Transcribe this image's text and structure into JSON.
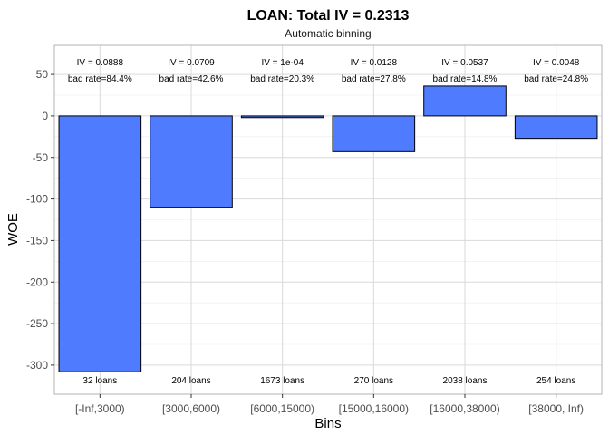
{
  "chart_data": {
    "type": "bar",
    "title": "LOAN: Total IV = 0.2313",
    "subtitle": "Automatic binning",
    "xlabel": "Bins",
    "ylabel": "WOE",
    "categories": [
      "[-Inf,3000)",
      "[3000,6000)",
      "[6000,15000)",
      "[15000,16000)",
      "[16000,38000)",
      "[38000, Inf)"
    ],
    "values": [
      -308,
      -110,
      -2,
      -43,
      36,
      -27
    ],
    "iv_labels": [
      "IV = 0.0888",
      "IV = 0.0709",
      "IV = 1e-04",
      "IV = 0.0128",
      "IV = 0.0537",
      "IV = 0.0048"
    ],
    "bad_rate_labels": [
      "bad rate=84.4%",
      "bad rate=42.6%",
      "bad rate=20.3%",
      "bad rate=27.8%",
      "bad rate=14.8%",
      "bad rate=24.8%"
    ],
    "count_labels": [
      "32 loans",
      "204 loans",
      "1673 loans",
      "270 loans",
      "2038 loans",
      "254 loans"
    ],
    "ylim": [
      -335,
      85
    ],
    "yticks": [
      50,
      0,
      -50,
      -100,
      -150,
      -200,
      -250,
      -300
    ],
    "grid": true,
    "legend": "none",
    "colors": {
      "bar_fill": "#4f7bff",
      "bar_stroke": "#000000",
      "grid": "#d9d9d9",
      "panel_border": "#b3b3b3"
    }
  }
}
